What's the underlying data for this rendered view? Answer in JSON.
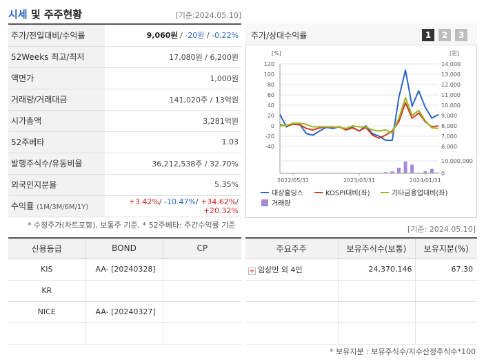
{
  "header": {
    "title_main": "시세",
    "title_rest": " 및 주주현황",
    "date": "[기준:2024.05.10]"
  },
  "price_table": {
    "rows": [
      {
        "label": "주가/전일대비/수익률",
        "price": "9,060원",
        "sep1": " / ",
        "change": "-20원",
        "sep2": " / ",
        "rate": "-0.22%"
      },
      {
        "label": "52Weeks 최고/최저",
        "value": "17,080원 / 6,200원"
      },
      {
        "label": "액면가",
        "value": "1,000원"
      },
      {
        "label": "거래량/거래대금",
        "value": "141,020주 / 13억원"
      },
      {
        "label": "시가총액",
        "value": "3,281억원"
      },
      {
        "label": "52주베타",
        "value": "1.03"
      },
      {
        "label": "발행주식수/유동비율",
        "value": "36,212,538주 / 32.70%"
      },
      {
        "label": "외국인지분율",
        "value": "5.35%"
      },
      {
        "label": "수익률",
        "label_sub": "(1M/3M/6M/1Y)",
        "r1": "+3.42%",
        "r2": "-10.47%",
        "r3": "+34.62%",
        "r4": "+20.32%",
        "sep": "/ "
      }
    ],
    "note": "* 수정주가(차트포함), 보통주 기준, * 52주베타: 주간수익률 기준"
  },
  "chart_panel": {
    "title": "주가/상대수익률",
    "tabs": [
      "1",
      "2",
      "3"
    ]
  },
  "chart_data": {
    "type": "line",
    "y_left_unit": "[%]",
    "y_right_unit": "[원]",
    "y_left_ticks": [
      120,
      100,
      80,
      60,
      40,
      20,
      0,
      -20,
      -40
    ],
    "y_right_ticks": [
      "14,000",
      "13,000",
      "12,000",
      "11,000",
      "10,000",
      "9,000",
      "8,000",
      "7,000",
      "6,000"
    ],
    "volume_ticks": [
      "10,000,000",
      "0"
    ],
    "x_tick_labels": [
      "2022/05/31",
      "2023/03/31",
      "2024/01/31"
    ],
    "x_tick_index": [
      2,
      12,
      22
    ],
    "series": [
      {
        "name": "대상홀딩스",
        "color": "#2a64c5",
        "values": [
          22,
          -2,
          5,
          3,
          -15,
          -18,
          -10,
          -3,
          -5,
          -2,
          -8,
          -3,
          -10,
          0,
          -15,
          -20,
          -28,
          -28,
          55,
          108,
          38,
          68,
          36,
          15,
          22
        ]
      },
      {
        "name": "KOSPI대비(좌)",
        "color": "#d33b1e",
        "values": [
          2,
          0,
          3,
          2,
          -5,
          -8,
          -4,
          -2,
          -3,
          -2,
          -8,
          -4,
          -10,
          -3,
          -18,
          -24,
          -18,
          -10,
          8,
          45,
          15,
          25,
          8,
          -2,
          0
        ]
      },
      {
        "name": "기타금융업대비(좌)",
        "color": "#9ab822",
        "values": [
          0,
          1,
          5,
          5,
          3,
          -2,
          -2,
          -2,
          -2,
          -3,
          -5,
          0,
          -2,
          -2,
          -8,
          -10,
          -8,
          -14,
          15,
          55,
          20,
          30,
          10,
          -4,
          -5
        ]
      }
    ],
    "volume": {
      "name": "거래량",
      "color": "#a78ad6",
      "values": [
        0,
        0,
        0,
        0,
        0,
        0,
        0,
        0,
        0,
        0,
        0,
        0,
        0,
        0,
        0,
        0,
        0.1,
        0.15,
        0.45,
        0.95,
        0.7,
        0.05,
        0.15,
        0.35,
        0.05
      ]
    },
    "ylim_left": [
      -40,
      120
    ]
  },
  "credit": {
    "headers": [
      "신용등급",
      "BOND",
      "CP"
    ],
    "rows": [
      {
        "agency": "KIS",
        "bond": "AA-  [20240328]",
        "cp": ""
      },
      {
        "agency": "KR",
        "bond": "",
        "cp": ""
      },
      {
        "agency": "NICE",
        "bond": "AA-  [20240327]",
        "cp": ""
      },
      {
        "agency": "",
        "bond": "",
        "cp": ""
      }
    ]
  },
  "holders": {
    "date": "[기준: 2024.05.10]",
    "headers": [
      "주요주주",
      "보유주식수(보통)",
      "보유지분(%)"
    ],
    "rows": [
      {
        "name": "임상민 외 4인",
        "shares": "24,370,146",
        "pct": "67.30"
      },
      {
        "name": "",
        "shares": "",
        "pct": ""
      },
      {
        "name": "",
        "shares": "",
        "pct": ""
      },
      {
        "name": "",
        "shares": "",
        "pct": ""
      }
    ],
    "note": "* 보유지분 : 보유주식수/지수산정주식수*100"
  }
}
